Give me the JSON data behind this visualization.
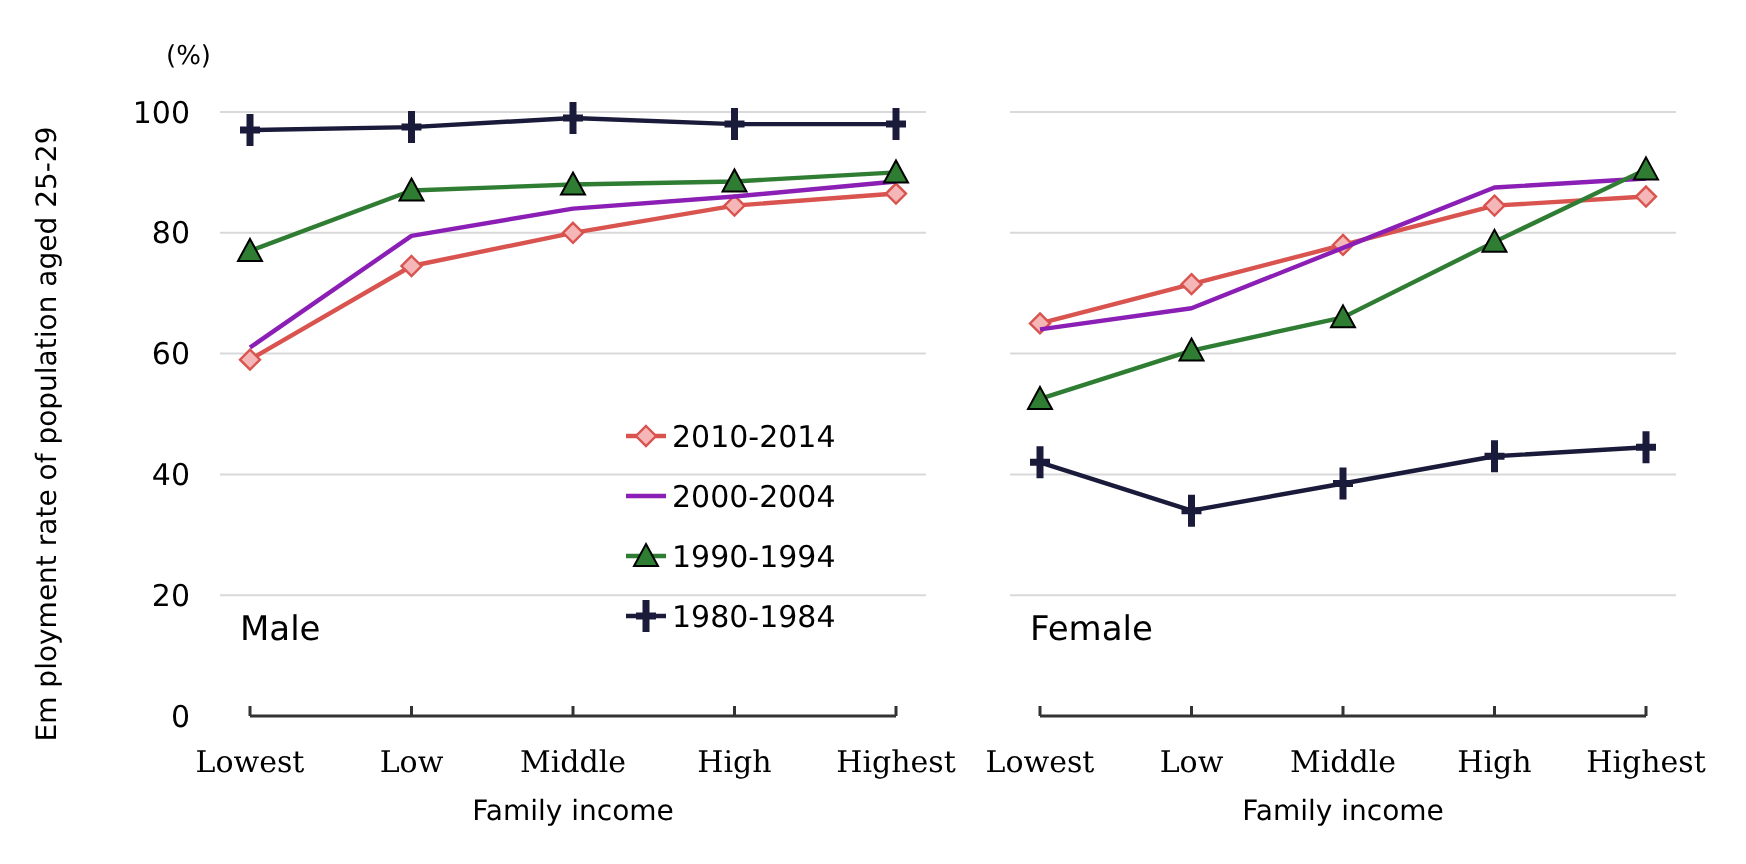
{
  "chart_data": [
    {
      "type": "line",
      "ylabel": "Em ployment rate of population aged 25-29",
      "xlabel": "Family income",
      "categories": [
        "Lowest",
        "Low",
        "Middle",
        "High",
        "Highest"
      ],
      "ylim": [
        0,
        100
      ],
      "yticks": [
        0,
        20,
        40,
        60,
        80,
        100
      ],
      "grid": "y",
      "legend": "bottom right",
      "annotations": [
        "(%)",
        "Male"
      ],
      "series": [
        {
          "name": "2010-2014",
          "color": "#d9534f",
          "marker": "diamond",
          "values": [
            59,
            74.5,
            80,
            84.5,
            86.5
          ]
        },
        {
          "name": "2000-2004",
          "color": "#8b1fb5",
          "marker": "none",
          "values": [
            61,
            79.5,
            84,
            86,
            88.5
          ]
        },
        {
          "name": "1990-1994",
          "color": "#2e7d32",
          "marker": "triangle",
          "values": [
            77,
            87,
            88,
            88.5,
            90
          ]
        },
        {
          "name": "1980-1984",
          "color": "#1a1a3a",
          "marker": "cross",
          "values": [
            97,
            97.5,
            99,
            98,
            98
          ]
        }
      ]
    },
    {
      "type": "line",
      "xlabel": "Family income",
      "categories": [
        "Lowest",
        "Low",
        "Middle",
        "High",
        "Highest"
      ],
      "ylim": [
        0,
        100
      ],
      "yticks": [
        0,
        20,
        40,
        60,
        80,
        100
      ],
      "grid": "y",
      "tick_labels": "x",
      "annotations": [
        "Female"
      ],
      "series": [
        {
          "color": "#d9534f",
          "marker": "diamond",
          "values": [
            65,
            71.5,
            78,
            84.5,
            86
          ]
        },
        {
          "color": "#8b1fb5",
          "marker": "none",
          "values": [
            64,
            67.5,
            77.5,
            87.5,
            89
          ]
        },
        {
          "color": "#2e7d32",
          "marker": "triangle",
          "values": [
            52.5,
            60.5,
            66,
            78.5,
            90.5
          ]
        },
        {
          "color": "#1a1a3a",
          "marker": "cross",
          "values": [
            42,
            34,
            38.5,
            43,
            44.5
          ]
        }
      ]
    }
  ]
}
